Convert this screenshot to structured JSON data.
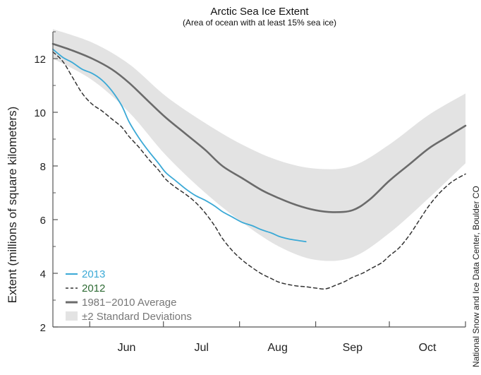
{
  "chart_data": {
    "type": "line",
    "title": "Arctic Sea Ice Extent",
    "subtitle": "(Area of ocean with at least 15% sea ice)",
    "xlabel": "",
    "ylabel": "Extent (millions of square kilometers)",
    "x_tick_labels": [
      "Jun",
      "Jul",
      "Aug",
      "Sep",
      "Oct"
    ],
    "y_tick_labels": [
      "2",
      "4",
      "6",
      "8",
      "10",
      "12"
    ],
    "ylim": [
      2,
      13
    ],
    "x_unit": "day_of_year",
    "xlim": [
      137,
      305
    ],
    "grid": false,
    "legend_position": "bottom-left",
    "credit": "National Snow and Ice Data Center, Boulder CO",
    "band": {
      "name": "±2 Standard Deviations",
      "color": "#e3e3e3",
      "x": [
        137,
        153,
        168,
        183,
        199,
        214,
        229,
        244,
        259,
        274,
        290,
        305
      ],
      "upper": [
        13.1,
        12.6,
        11.8,
        10.6,
        9.6,
        8.8,
        8.2,
        7.9,
        8.0,
        8.8,
        9.9,
        10.7
      ],
      "lower": [
        12.0,
        11.2,
        10.0,
        8.4,
        7.0,
        5.9,
        5.0,
        4.5,
        4.6,
        5.5,
        6.8,
        8.1
      ]
    },
    "series": [
      {
        "name": "1981−2010 Average",
        "color": "#6b6b6b",
        "style": "solid",
        "x": [
          137,
          145,
          153,
          161,
          168,
          176,
          183,
          191,
          199,
          206,
          214,
          222,
          229,
          236,
          244,
          251,
          259,
          266,
          274,
          282,
          290,
          297,
          305
        ],
        "y": [
          12.55,
          12.3,
          12.0,
          11.6,
          11.1,
          10.4,
          9.8,
          9.2,
          8.6,
          8.0,
          7.55,
          7.1,
          6.8,
          6.55,
          6.35,
          6.28,
          6.35,
          6.75,
          7.45,
          8.05,
          8.65,
          9.05,
          9.5
        ]
      },
      {
        "name": "2013",
        "color": "#3ba9d6",
        "style": "solid",
        "x": [
          137,
          141,
          145,
          149,
          153,
          157,
          161,
          165,
          168,
          172,
          176,
          180,
          183,
          187,
          191,
          195,
          199,
          203,
          206,
          210,
          214,
          218,
          222,
          226,
          229,
          233,
          237,
          240
        ],
        "y": [
          12.35,
          12.05,
          11.85,
          11.6,
          11.45,
          11.2,
          10.8,
          10.25,
          9.65,
          9.05,
          8.55,
          8.1,
          7.75,
          7.45,
          7.15,
          6.9,
          6.72,
          6.5,
          6.3,
          6.1,
          5.9,
          5.78,
          5.62,
          5.5,
          5.38,
          5.28,
          5.22,
          5.18
        ]
      },
      {
        "name": "2012",
        "color": "#333333",
        "style": "dashed",
        "x": [
          137,
          141,
          145,
          149,
          153,
          157,
          161,
          165,
          168,
          172,
          176,
          180,
          183,
          187,
          191,
          195,
          199,
          203,
          206,
          210,
          214,
          218,
          222,
          226,
          229,
          233,
          237,
          240,
          244,
          248,
          252,
          256,
          259,
          263,
          267,
          271,
          274,
          278,
          282,
          286,
          290,
          294,
          298,
          301,
          305
        ],
        "y": [
          12.25,
          11.9,
          11.3,
          10.7,
          10.3,
          10.05,
          9.75,
          9.45,
          9.1,
          8.7,
          8.25,
          7.85,
          7.5,
          7.2,
          6.95,
          6.65,
          6.25,
          5.75,
          5.3,
          4.85,
          4.5,
          4.22,
          3.98,
          3.8,
          3.67,
          3.58,
          3.52,
          3.5,
          3.45,
          3.42,
          3.55,
          3.7,
          3.85,
          4.0,
          4.2,
          4.4,
          4.65,
          4.95,
          5.4,
          5.95,
          6.5,
          6.95,
          7.3,
          7.5,
          7.7
        ]
      }
    ]
  }
}
